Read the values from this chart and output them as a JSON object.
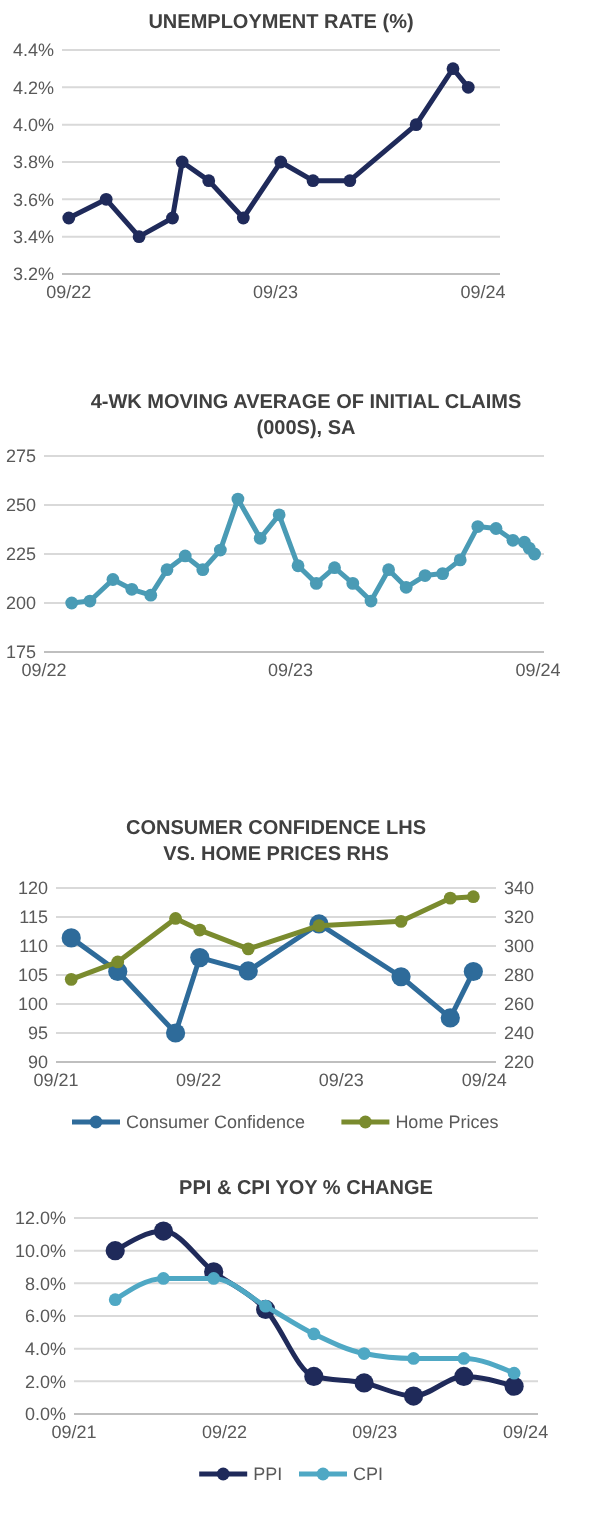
{
  "chart_data": [
    {
      "type": "line",
      "title": "UNEMPLOYMENT RATE (%)",
      "x": [
        "2022-09-01",
        "2022-11-06",
        "2023-01-03",
        "2023-03-03",
        "2023-03-20",
        "2023-05-06",
        "2023-07-06",
        "2023-09-10",
        "2023-11-06",
        "2024-01-10",
        "2024-05-06",
        "2024-07-10",
        "2024-08-06"
      ],
      "series": [
        {
          "color": "#1f2a5a",
          "values": [
            3.5,
            3.6,
            3.4,
            3.5,
            3.8,
            3.7,
            3.5,
            3.8,
            3.7,
            3.7,
            4.0,
            4.3,
            4.2
          ]
        }
      ],
      "xlim": [
        "2022-08-20",
        "2024-10-01"
      ],
      "xticks": [
        {
          "value": "2022-09-01",
          "label": "09/22"
        },
        {
          "value": "2023-09-01",
          "label": "09/23"
        },
        {
          "value": "2024-09-01",
          "label": "09/24"
        }
      ],
      "ylim": [
        3.2,
        4.4
      ],
      "yticks": [
        {
          "value": 3.2,
          "label": "3.2%"
        },
        {
          "value": 3.4,
          "label": "3.4%"
        },
        {
          "value": 3.6,
          "label": "3.6%"
        },
        {
          "value": 3.8,
          "label": "3.8%"
        },
        {
          "value": 4.0,
          "label": "4.0%"
        },
        {
          "value": 4.2,
          "label": "4.2%"
        },
        {
          "value": 4.4,
          "label": "4.4%"
        }
      ],
      "grid": "y",
      "marker": "circle",
      "legend": false
    },
    {
      "type": "line",
      "title": "4-WK MOVING AVERAGE OF INITIAL CLAIMS\n(000S), SA",
      "x": [
        "2022-10-12",
        "2022-11-08",
        "2022-12-12",
        "2023-01-09",
        "2023-02-06",
        "2023-03-02",
        "2023-03-29",
        "2023-04-24",
        "2023-05-20",
        "2023-06-15",
        "2023-07-18",
        "2023-08-15",
        "2023-09-12",
        "2023-10-09",
        "2023-11-05",
        "2023-12-02",
        "2023-12-29",
        "2024-01-24",
        "2024-02-19",
        "2024-03-18",
        "2024-04-13",
        "2024-05-09",
        "2024-06-04",
        "2024-07-01",
        "2024-07-26",
        "2024-08-12",
        "2024-08-19",
        "2024-08-27"
      ],
      "series": [
        {
          "color": "#4a9bb5",
          "values": [
            200,
            201,
            212,
            207,
            204,
            217,
            224,
            217,
            227,
            253,
            233,
            245,
            219,
            210,
            218,
            210,
            201,
            217,
            208,
            214,
            215,
            222,
            239,
            238,
            232,
            231,
            228,
            225
          ]
        }
      ],
      "xlim": [
        "2022-09-01",
        "2024-09-10"
      ],
      "xticks": [
        {
          "value": "2022-09-01",
          "label": "09/22"
        },
        {
          "value": "2023-09-01",
          "label": "09/23"
        },
        {
          "value": "2024-09-01",
          "label": "09/24"
        }
      ],
      "ylim": [
        175,
        275
      ],
      "yticks": [
        175,
        200,
        225,
        250,
        275
      ],
      "grid": "y",
      "marker": "circle",
      "legend": false
    },
    {
      "type": "line",
      "title": "CONSUMER CONFIDENCE  LHS\nVS. HOME PRICES  RHS",
      "x": [
        "2021-10-10",
        "2022-02-06",
        "2022-07-04",
        "2022-09-04",
        "2023-01-06",
        "2023-07-06",
        "2024-02-01",
        "2024-06-06",
        "2024-08-04"
      ],
      "series": [
        {
          "name": "Consumer Confidence",
          "color": "#2e6b9a",
          "values": [
            111.4,
            105.6,
            95.0,
            108.0,
            105.7,
            113.8,
            104.7,
            97.6,
            105.6
          ]
        },
        {
          "name": "Home Prices",
          "color": "#7a8b2e",
          "axis": "y2",
          "values": [
            277,
            289,
            319,
            311,
            298,
            314,
            317,
            333,
            334
          ]
        }
      ],
      "xlim": [
        "2021-09-01",
        "2024-10-01"
      ],
      "xticks": [
        {
          "value": "2021-09-01",
          "label": "09/21"
        },
        {
          "value": "2022-09-01",
          "label": "09/22"
        },
        {
          "value": "2023-09-01",
          "label": "09/23"
        },
        {
          "value": "2024-09-01",
          "label": "09/24"
        }
      ],
      "ylim": [
        90,
        120
      ],
      "yticks": [
        90,
        95,
        100,
        105,
        110,
        115,
        120
      ],
      "y2lim": [
        220,
        340
      ],
      "y2ticks": [
        220,
        240,
        260,
        280,
        300,
        320,
        340
      ],
      "grid": "y",
      "marker": "circle",
      "legend": "bottom"
    },
    {
      "type": "line",
      "title": "PPI & CPI YOY % CHANGE",
      "x": [
        "2021-12-10",
        "2022-04-06",
        "2022-08-06",
        "2022-12-10",
        "2023-04-06",
        "2023-08-06",
        "2023-12-04",
        "2024-04-04",
        "2024-08-04"
      ],
      "series": [
        {
          "name": "PPI",
          "color": "#1f2a5a",
          "values": [
            10.0,
            11.2,
            8.7,
            6.4,
            2.3,
            1.9,
            1.1,
            2.3,
            1.7
          ]
        },
        {
          "name": "CPI",
          "color": "#4fa8c4",
          "values": [
            7.0,
            8.3,
            8.3,
            6.6,
            4.9,
            3.7,
            3.4,
            3.4,
            2.5
          ]
        }
      ],
      "xlim": [
        "2021-09-01",
        "2024-10-01"
      ],
      "xticks": [
        {
          "value": "2021-09-01",
          "label": "09/21"
        },
        {
          "value": "2022-09-01",
          "label": "09/22"
        },
        {
          "value": "2023-09-01",
          "label": "09/23"
        },
        {
          "value": "2024-09-01",
          "label": "09/24"
        }
      ],
      "ylim": [
        0,
        12
      ],
      "yticks": [
        {
          "value": 0,
          "label": "0.0%"
        },
        {
          "value": 2,
          "label": "2.0%"
        },
        {
          "value": 4,
          "label": "4.0%"
        },
        {
          "value": 6,
          "label": "6.0%"
        },
        {
          "value": 8,
          "label": "8.0%"
        },
        {
          "value": 10,
          "label": "10.0%"
        },
        {
          "value": 12,
          "label": "12.0%"
        }
      ],
      "grid": "y",
      "marker": "circle",
      "legend": "bottom"
    }
  ]
}
